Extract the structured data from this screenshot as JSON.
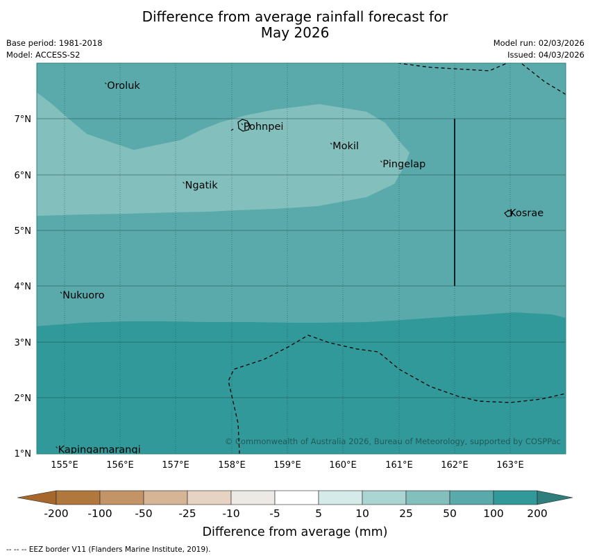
{
  "title": {
    "line1": "Difference from average rainfall forecast for",
    "line2": "May 2026"
  },
  "meta": {
    "base_period": "Base period: 1981-2018",
    "model": "Model: ACCESS-S2",
    "model_run": "Model run: 02/03/2026",
    "issued": "Issued: 04/03/2026"
  },
  "map": {
    "lon_range": [
      154.5,
      164.0
    ],
    "lat_range": [
      1.0,
      8.0
    ],
    "lon_ticks": [
      "155°E",
      "156°E",
      "157°E",
      "158°E",
      "159°E",
      "160°E",
      "161°E",
      "162°E",
      "163°E"
    ],
    "lat_ticks": [
      "7°N",
      "6°N",
      "5°N",
      "4°N",
      "3°N",
      "2°N",
      "1°N"
    ],
    "places": [
      {
        "name": "Oroluk",
        "lon": 155.75,
        "lat": 7.6
      },
      {
        "name": "Pohnpei",
        "lon": 158.2,
        "lat": 6.87
      },
      {
        "name": "Mokil",
        "lon": 159.8,
        "lat": 6.52
      },
      {
        "name": "Pingelap",
        "lon": 160.7,
        "lat": 6.2
      },
      {
        "name": "Ngatik",
        "lon": 157.15,
        "lat": 5.82
      },
      {
        "name": "Kosrae",
        "lon": 162.98,
        "lat": 5.32
      },
      {
        "name": "Nukuoro",
        "lon": 154.95,
        "lat": 3.85
      },
      {
        "name": "Kapingamarangi",
        "lon": 154.87,
        "lat": 1.08
      }
    ],
    "copyright": "© Commonwealth of Australia 2026, Bureau of Meteorology, supported by COSPPac"
  },
  "colorbar": {
    "label": "Difference from average (mm)",
    "ticks": [
      "-200",
      "-100",
      "-50",
      "-25",
      "-10",
      "-5",
      "5",
      "10",
      "25",
      "50",
      "100",
      "200"
    ],
    "colors": [
      "#a5672b",
      "#b1783d",
      "#c39466",
      "#d5b595",
      "#e6d3c1",
      "#ede9e4",
      "#ffffff",
      "#d4ebe9",
      "#aad5d3",
      "#83c0bd",
      "#5aaaab",
      "#32999a",
      "#2f7d7c"
    ]
  },
  "footer": {
    "legend": "--  --  -- EEZ border V11 (Flanders Marine Institute, 2019)."
  }
}
